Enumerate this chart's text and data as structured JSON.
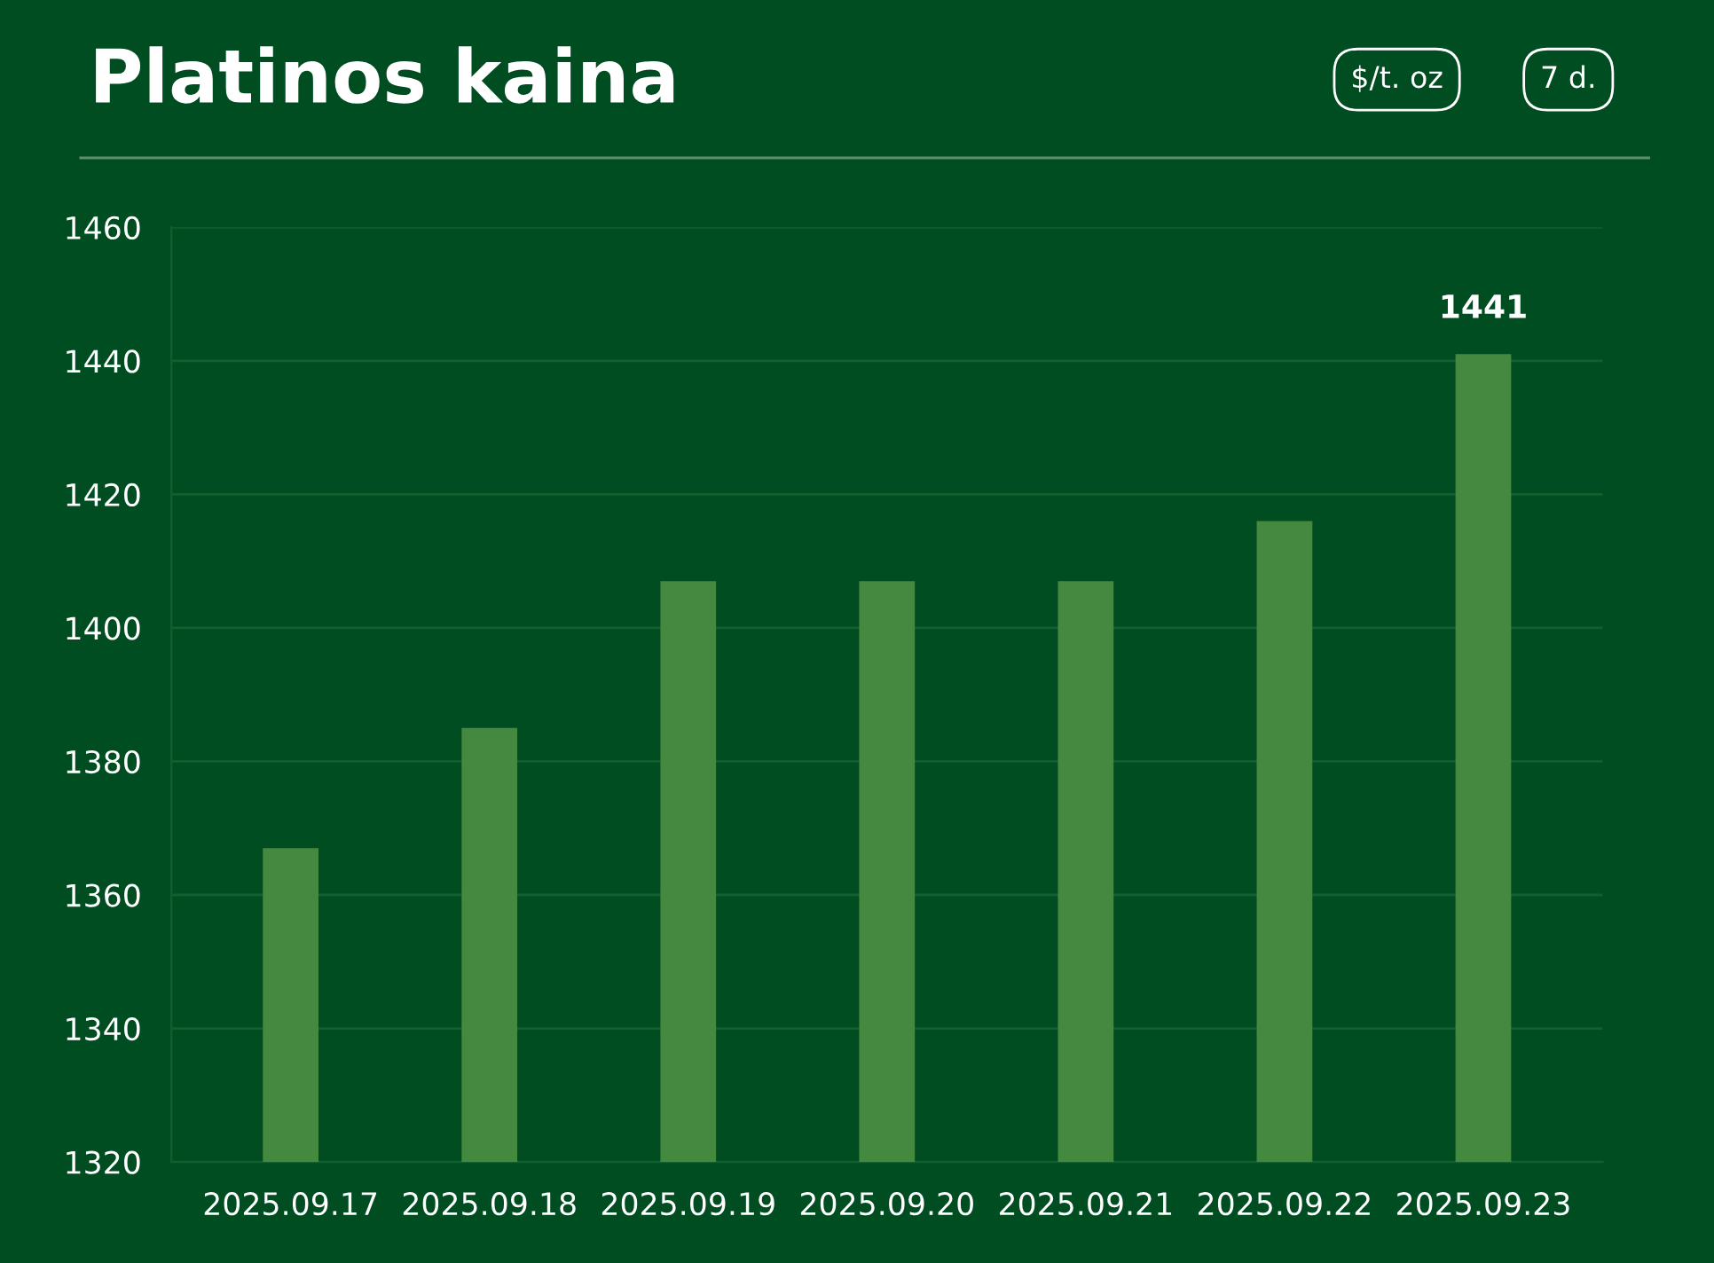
{
  "chart_data": {
    "type": "bar",
    "title": "Platinos kaina",
    "annotations": [
      "$/t. oz",
      "7 d."
    ],
    "categories": [
      "2025.09.17",
      "2025.09.18",
      "2025.09.19",
      "2025.09.20",
      "2025.09.21",
      "2025.09.22",
      "2025.09.23"
    ],
    "values": [
      1367,
      1385,
      1407,
      1407,
      1407,
      1416,
      1441
    ],
    "value_labels": [
      null,
      null,
      null,
      null,
      null,
      null,
      "1441"
    ],
    "color": "#45883f",
    "ylim": [
      1320,
      1460
    ],
    "yticks": [
      1320,
      1340,
      1360,
      1380,
      1400,
      1420,
      1440,
      1460
    ],
    "grid": "y",
    "legend": false
  }
}
